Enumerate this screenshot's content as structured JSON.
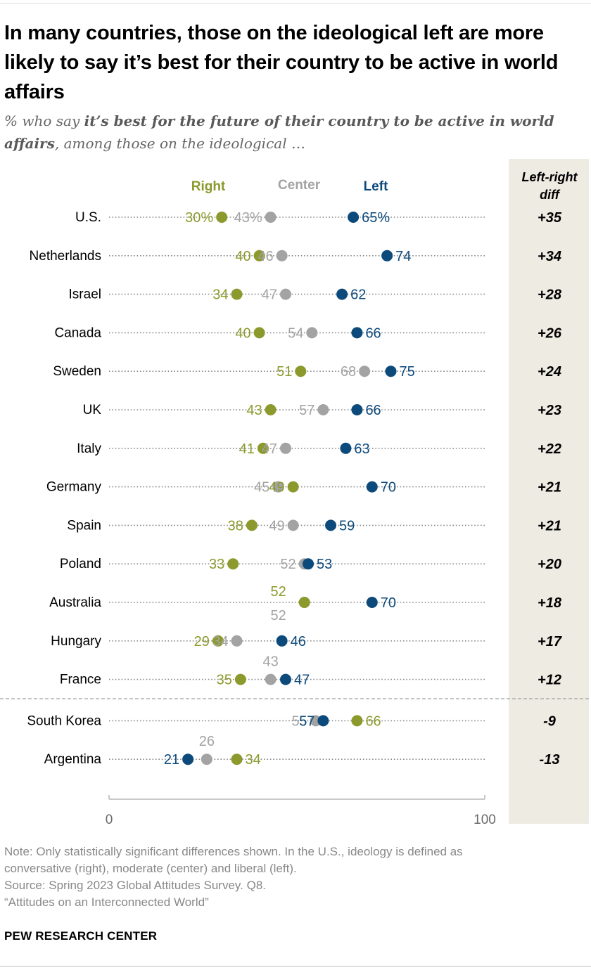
{
  "title": "In many countries, those on the ideological left are more likely to say it’s best for their country to be active in world affairs",
  "subtitle": {
    "prefix": "% who say ",
    "emphasis": "it’s best for the future of their country to be active in world affairs",
    "suffix": ", among those on the ideological …"
  },
  "colors": {
    "right": "#8c9a2d",
    "center": "#a3a3a3",
    "left": "#0d4a7c",
    "diff_panel": "#eeebe3"
  },
  "chart_data": {
    "type": "dot",
    "legend": {
      "right": "Right",
      "center": "Center",
      "left": "Left"
    },
    "diff_header": [
      "Left-right",
      "diff"
    ],
    "axis": {
      "min": 0,
      "max": 100,
      "tick_labels": [
        "0",
        "100"
      ]
    },
    "rows": [
      {
        "country": "U.S.",
        "right": 30,
        "center": 43,
        "left": 65,
        "diff": "+35",
        "labels": {
          "right": "30%",
          "center": "43%",
          "left": "65%"
        }
      },
      {
        "country": "Netherlands",
        "right": 40,
        "center": 46,
        "left": 74,
        "diff": "+34",
        "labels": {
          "right": "40",
          "center": "46",
          "left": "74"
        }
      },
      {
        "country": "Israel",
        "right": 34,
        "center": 47,
        "left": 62,
        "diff": "+28",
        "labels": {
          "right": "34",
          "center": "47",
          "left": "62"
        }
      },
      {
        "country": "Canada",
        "right": 40,
        "center": 54,
        "left": 66,
        "diff": "+26",
        "labels": {
          "right": "40",
          "center": "54",
          "left": "66"
        }
      },
      {
        "country": "Sweden",
        "right": 51,
        "center": 68,
        "left": 75,
        "diff": "+24",
        "labels": {
          "right": "51",
          "center": "68",
          "left": "75"
        }
      },
      {
        "country": "UK",
        "right": 43,
        "center": 57,
        "left": 66,
        "diff": "+23",
        "labels": {
          "right": "43",
          "center": "57",
          "left": "66"
        }
      },
      {
        "country": "Italy",
        "right": 41,
        "center": 47,
        "left": 63,
        "diff": "+22",
        "labels": {
          "right": "41",
          "center": "47",
          "left": "63"
        }
      },
      {
        "country": "Germany",
        "right": 49,
        "center": 45,
        "left": 70,
        "diff": "+21",
        "labels": {
          "right": "49",
          "center": "45",
          "left": "70"
        }
      },
      {
        "country": "Spain",
        "right": 38,
        "center": 49,
        "left": 59,
        "diff": "+21",
        "labels": {
          "right": "38",
          "center": "49",
          "left": "59"
        }
      },
      {
        "country": "Poland",
        "right": 33,
        "center": 52,
        "left": 53,
        "diff": "+20",
        "labels": {
          "right": "33",
          "center": "52",
          "left": "53"
        }
      },
      {
        "country": "Australia",
        "right": 52,
        "center": 52,
        "left": 70,
        "diff": "+18",
        "labels": {
          "right": "52",
          "center": "52",
          "left": "70"
        }
      },
      {
        "country": "Hungary",
        "right": 29,
        "center": 34,
        "left": 46,
        "diff": "+17",
        "labels": {
          "right": "29",
          "center": "34",
          "left": "46"
        }
      },
      {
        "country": "France",
        "right": 35,
        "center": 43,
        "left": 47,
        "diff": "+12",
        "labels": {
          "right": "35",
          "center": "43",
          "left": "47"
        }
      },
      {
        "country": "South Korea",
        "right": 66,
        "center": 55,
        "left": 57,
        "diff": "-9",
        "labels": {
          "right": "66",
          "center": "55",
          "left": "57"
        }
      },
      {
        "country": "Argentina",
        "right": 34,
        "center": 26,
        "left": 21,
        "diff": "-13",
        "labels": {
          "right": "34",
          "center": "26",
          "left": "21"
        }
      }
    ]
  },
  "notes": {
    "note_line1": "Note: Only statistically significant differences shown. In the U.S., ideology is defined as",
    "note_line2": "conversative (right), moderate (center) and liberal (left).",
    "source": "Source: Spring 2023 Global Attitudes Survey. Q8.",
    "report": "“Attitudes on an Interconnected World”"
  },
  "brand": "PEW RESEARCH CENTER"
}
